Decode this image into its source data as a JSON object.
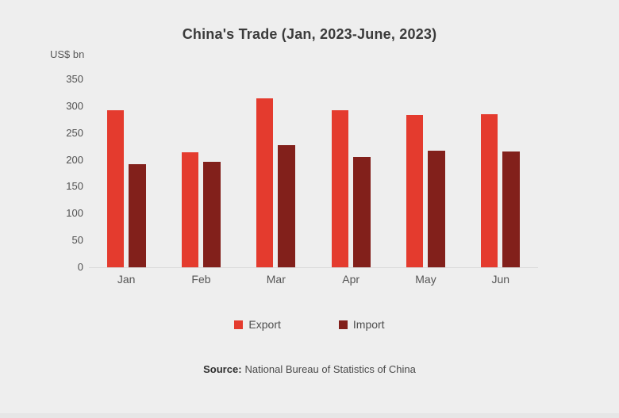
{
  "title": "China's Trade (Jan, 2023-June, 2023)",
  "y_axis_unit": "US$ bn",
  "source": {
    "label": "Source:",
    "text": "National Bureau of Statistics of China"
  },
  "colors": {
    "background": "#eeeeee",
    "export": "#e43b2e",
    "import": "#82201b",
    "axis_line": "#d9d9d9",
    "title_text": "#3b3b3b",
    "axis_text": "#4f4f4f"
  },
  "chart_data": {
    "type": "bar",
    "title": "China's Trade (Jan, 2023-June, 2023)",
    "xlabel": "",
    "ylabel": "US$ bn",
    "categories": [
      "Jan",
      "Feb",
      "Mar",
      "Apr",
      "May",
      "Jun"
    ],
    "series": [
      {
        "name": "Export",
        "color": "#e43b2e",
        "values": [
          292,
          214,
          315,
          292,
          284,
          285
        ]
      },
      {
        "name": "Import",
        "color": "#82201b",
        "values": [
          192,
          197,
          227,
          205,
          217,
          215
        ]
      }
    ],
    "ylim": [
      0,
      350
    ],
    "yticks": [
      0,
      50,
      100,
      150,
      200,
      250,
      300,
      350
    ],
    "grid": false,
    "legend_position": "bottom"
  }
}
